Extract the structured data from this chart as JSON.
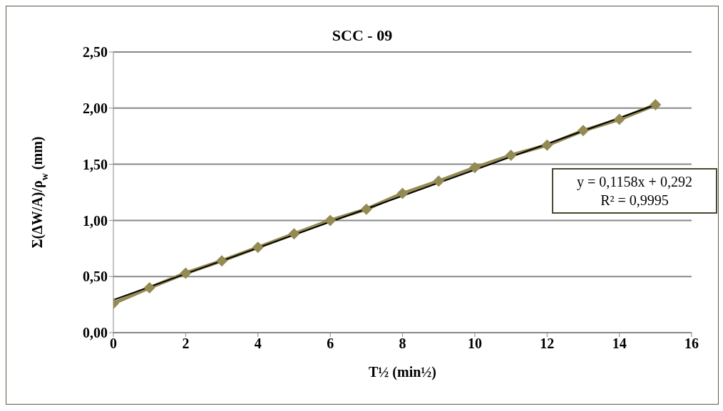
{
  "chart_data": {
    "type": "line",
    "title": "SCC - 09",
    "xlabel": "T½ (min½)",
    "ylabel": "Σ(ΔW/A)/ρ$_{w}$ (mm)",
    "annotations": [
      "y = 0,1158x + 0,292",
      "R² = 0,9995"
    ],
    "xlim": [
      0,
      16
    ],
    "xticks": [
      0,
      2,
      4,
      6,
      8,
      10,
      12,
      14,
      16
    ],
    "ylim": [
      0,
      2.5
    ],
    "yticks": [
      {
        "value": 0,
        "label": "0,00"
      },
      {
        "value": 0.5,
        "label": "0,50"
      },
      {
        "value": 1,
        "label": "1,00"
      },
      {
        "value": 1.5,
        "label": "1,50"
      },
      {
        "value": 2,
        "label": "2,00"
      },
      {
        "value": 2.5,
        "label": "2,50"
      }
    ],
    "grid": "y",
    "legend": false,
    "series": [
      {
        "type": "line",
        "marker": "diamond",
        "color": "#948a54",
        "x": [
          0,
          1,
          2,
          3,
          4,
          5,
          6,
          7,
          8,
          9,
          10,
          11,
          12,
          13,
          14,
          15
        ],
        "values": [
          0.26,
          0.4,
          0.53,
          0.64,
          0.76,
          0.88,
          1.0,
          1.1,
          1.24,
          1.35,
          1.47,
          1.58,
          1.67,
          1.8,
          1.9,
          2.03
        ]
      },
      {
        "type": "line",
        "marker": "none",
        "color": "#000000",
        "x": [
          0,
          15
        ],
        "values": [
          0.292,
          2.029
        ]
      }
    ]
  }
}
